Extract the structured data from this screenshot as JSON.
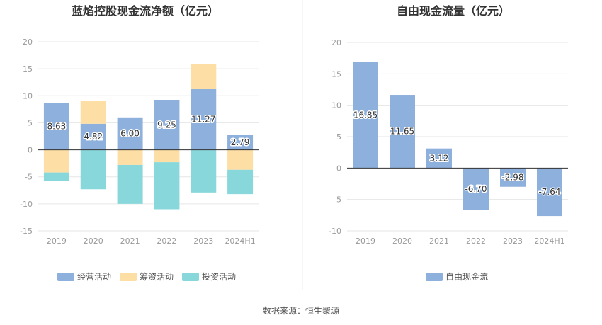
{
  "colors": {
    "operating": "#8eb0dc",
    "financing": "#fddea5",
    "investing": "#88d8db",
    "fcf": "#8eb0dc",
    "grid": "#e6e6e6",
    "axis": "#333333"
  },
  "chart_data": [
    {
      "type": "bar",
      "stacked": true,
      "title": "蓝焰控股现金流净额（亿元）",
      "categories": [
        "2019",
        "2020",
        "2021",
        "2022",
        "2023",
        "2024H1"
      ],
      "ylim": [
        -15,
        20
      ],
      "yticks": [
        20,
        15,
        10,
        5,
        0,
        -5,
        -10,
        -15
      ],
      "grid": true,
      "legend_position": "bottom",
      "series": [
        {
          "name": "经营活动",
          "color_key": "operating",
          "values": [
            8.63,
            4.82,
            6.0,
            9.25,
            11.27,
            2.79
          ],
          "labels": [
            "8.63",
            "4.82",
            "6.00",
            "9.25",
            "11.27",
            "2.79"
          ]
        },
        {
          "name": "筹资活动",
          "color_key": "financing",
          "values": [
            -4.2,
            4.2,
            -2.8,
            -2.3,
            4.6,
            -3.7
          ]
        },
        {
          "name": "投资活动",
          "color_key": "investing",
          "values": [
            -1.6,
            -7.3,
            -7.2,
            -8.7,
            -7.9,
            -4.5
          ]
        }
      ]
    },
    {
      "type": "bar",
      "title": "自由现金流量（亿元）",
      "categories": [
        "2019",
        "2020",
        "2021",
        "2022",
        "2023",
        "2024H1"
      ],
      "ylim": [
        -10,
        20
      ],
      "yticks": [
        20,
        15,
        10,
        5,
        0,
        -5,
        -10
      ],
      "grid": true,
      "legend_position": "bottom",
      "series": [
        {
          "name": "自由现金流",
          "color_key": "fcf",
          "values": [
            16.85,
            11.65,
            3.12,
            -6.7,
            -2.98,
            -7.64
          ],
          "labels": [
            "16.85",
            "11.65",
            "3.12",
            "-6.70",
            "-2.98",
            "-7.64"
          ]
        }
      ]
    }
  ],
  "footer": {
    "source": "数据来源：恒生聚源"
  }
}
